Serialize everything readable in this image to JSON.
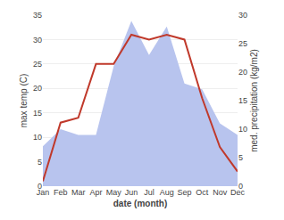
{
  "chart_data": {
    "type": "line",
    "categories": [
      "Jan",
      "Feb",
      "Mar",
      "Apr",
      "May",
      "Jun",
      "Jul",
      "Aug",
      "Sep",
      "Oct",
      "Nov",
      "Dec"
    ],
    "series": [
      {
        "type": "area",
        "axis": "y2",
        "color": "#b8c4ee",
        "values": [
          7,
          10,
          9,
          9,
          21,
          29,
          23,
          28,
          18,
          17,
          11,
          9
        ]
      },
      {
        "type": "line",
        "color": "#c0392b",
        "values": [
          1,
          13,
          14,
          25,
          25,
          31,
          30,
          31,
          30,
          18,
          8,
          3
        ]
      }
    ],
    "xlabel": "date (month)",
    "ylabel": "max temp (C)",
    "y2label": "med. precipitation (kg/m2)",
    "ylim": [
      0,
      35
    ],
    "yticks": [
      0,
      5,
      10,
      15,
      20,
      25,
      30,
      35
    ],
    "y2lim": [
      0,
      30
    ],
    "y2ticks": [
      0,
      5,
      10,
      15,
      20,
      25,
      30
    ],
    "grid": true
  }
}
